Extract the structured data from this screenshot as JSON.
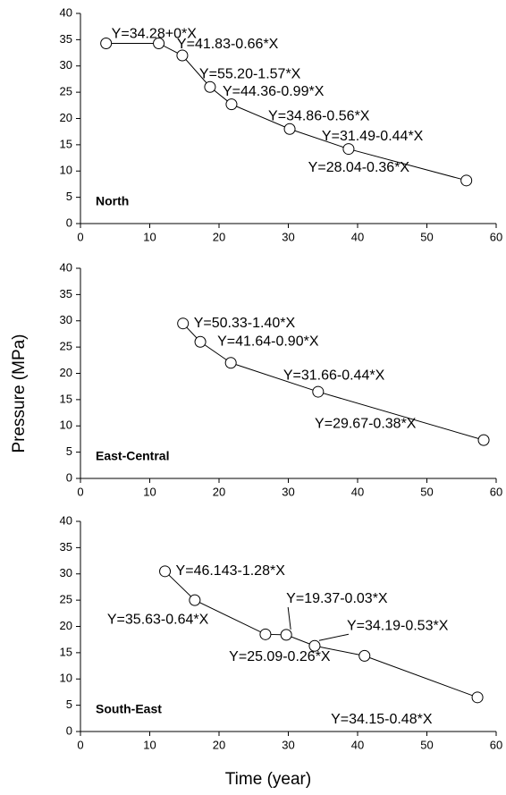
{
  "y_label": "Pressure (MPa)",
  "x_label": "Time (year)",
  "chart_data": [
    {
      "type": "line",
      "label": "North",
      "color": "#000000",
      "x": [
        3.7,
        11.3,
        14.7,
        18.7,
        21.8,
        30.2,
        38.7,
        55.7
      ],
      "values": [
        34.3,
        34.3,
        32,
        26,
        22.7,
        18,
        14.2,
        8.2
      ],
      "annotations": [
        "Y=34.28+0*X",
        "Y=41.83-0.66*X",
        "Y=55.20-1.57*X",
        "Y=44.36-0.99*X",
        "Y=34.86-0.56*X",
        "Y=31.49-0.44*X",
        "Y=28.04-0.36*X"
      ],
      "xlim": [
        0,
        60
      ],
      "xticks": [
        0,
        10,
        20,
        30,
        40,
        50,
        60
      ],
      "ylim": [
        0,
        40
      ],
      "yticks": [
        0,
        5,
        10,
        15,
        20,
        25,
        30,
        35,
        40
      ]
    },
    {
      "type": "line",
      "label": "East-Central",
      "color": "#000000",
      "x": [
        14.8,
        17.3,
        21.7,
        34.3,
        58.2
      ],
      "values": [
        29.5,
        26,
        22,
        16.5,
        7.3
      ],
      "annotations": [
        "Y=50.33-1.40*X",
        "Y=41.64-0.90*X",
        "Y=31.66-0.44*X",
        "Y=29.67-0.38*X"
      ],
      "xlim": [
        0,
        60
      ],
      "xticks": [
        0,
        10,
        20,
        30,
        40,
        50,
        60
      ],
      "ylim": [
        0,
        40
      ],
      "yticks": [
        0,
        5,
        10,
        15,
        20,
        25,
        30,
        35,
        40
      ]
    },
    {
      "type": "line",
      "label": "South-East",
      "color": "#000000",
      "x": [
        12.2,
        16.5,
        26.7,
        29.7,
        33.8,
        41,
        57.3
      ],
      "values": [
        30.5,
        25,
        18.5,
        18.4,
        16.3,
        14.4,
        6.5
      ],
      "annotations": [
        "Y=46.143-1.28*X",
        "Y=35.63-0.64*X",
        "Y=19.37-0.03*X",
        "Y=34.19-0.53*X",
        "Y=25.09-0.26*X",
        "Y=34.15-0.48*X"
      ],
      "xlim": [
        0,
        60
      ],
      "xticks": [
        0,
        10,
        20,
        30,
        40,
        50,
        60
      ],
      "ylim": [
        0,
        40
      ],
      "yticks": [
        0,
        5,
        10,
        15,
        20,
        25,
        30,
        35,
        40
      ]
    }
  ]
}
